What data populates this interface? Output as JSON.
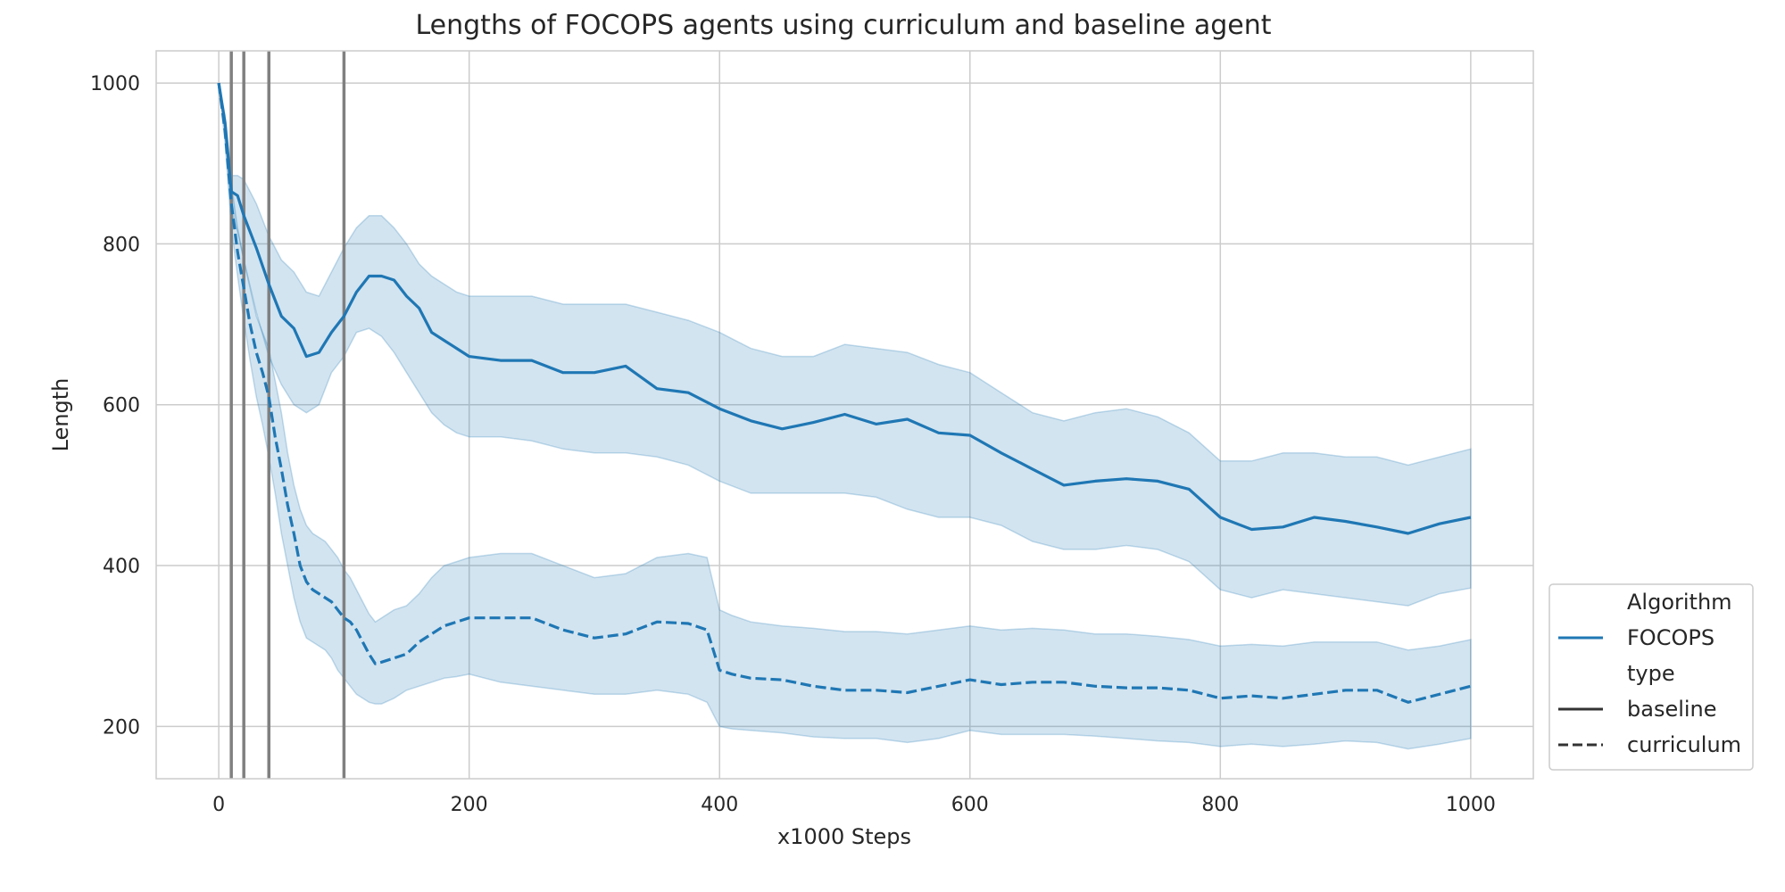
{
  "chart_data": {
    "type": "line",
    "title": "Lengths of FOCOPS agents using curriculum and baseline agent",
    "xlabel": "x1000 Steps",
    "ylabel": "Length",
    "xlim": [
      -50,
      1050
    ],
    "ylim": [
      135,
      1040
    ],
    "xticks": [
      0,
      200,
      400,
      600,
      800,
      1000
    ],
    "yticks": [
      200,
      400,
      600,
      800,
      1000
    ],
    "grid": true,
    "legend_position": "right, lower",
    "colors": {
      "line": "#1f77b4",
      "band": "#1f77b4",
      "vline": "#808080",
      "grid": "#cccccc",
      "spine": "#cccccc"
    },
    "curriculum_switch_steps": [
      10,
      20,
      40,
      100
    ],
    "legend": {
      "hue_title": "Algorithm",
      "hue_entries": [
        {
          "label": "FOCOPS",
          "color": "#1f77b4"
        }
      ],
      "style_title": "type",
      "style_entries": [
        {
          "label": "baseline",
          "dash": "solid"
        },
        {
          "label": "curriculum",
          "dash": "dashed"
        }
      ]
    },
    "series": [
      {
        "name": "baseline",
        "algorithm": "FOCOPS",
        "style": "solid",
        "x": [
          0,
          5,
          10,
          15,
          20,
          30,
          40,
          50,
          60,
          70,
          80,
          90,
          100,
          110,
          120,
          130,
          140,
          150,
          160,
          170,
          180,
          190,
          200,
          225,
          250,
          275,
          300,
          325,
          350,
          375,
          400,
          425,
          450,
          475,
          500,
          525,
          550,
          575,
          600,
          625,
          650,
          675,
          700,
          725,
          750,
          775,
          800,
          825,
          850,
          875,
          900,
          925,
          950,
          975,
          1000
        ],
        "y": [
          1000,
          950,
          865,
          860,
          835,
          795,
          750,
          710,
          695,
          660,
          665,
          690,
          710,
          740,
          760,
          760,
          755,
          735,
          720,
          690,
          680,
          670,
          660,
          655,
          655,
          640,
          640,
          648,
          620,
          615,
          595,
          580,
          570,
          578,
          588,
          576,
          582,
          565,
          562,
          540,
          520,
          500,
          505,
          508,
          505,
          495,
          460,
          445,
          448,
          460,
          455,
          448,
          440,
          452,
          460
        ],
        "lower": [
          1000,
          940,
          840,
          815,
          780,
          715,
          660,
          625,
          600,
          590,
          600,
          640,
          660,
          690,
          695,
          685,
          665,
          640,
          615,
          590,
          575,
          565,
          560,
          560,
          555,
          545,
          540,
          540,
          535,
          525,
          505,
          490,
          490,
          490,
          490,
          485,
          470,
          460,
          460,
          450,
          430,
          420,
          420,
          425,
          420,
          405,
          370,
          360,
          370,
          365,
          360,
          355,
          350,
          365,
          372
        ],
        "upper": [
          1000,
          960,
          885,
          885,
          880,
          850,
          810,
          780,
          765,
          740,
          735,
          765,
          795,
          820,
          835,
          835,
          820,
          800,
          775,
          760,
          750,
          740,
          735,
          735,
          735,
          725,
          725,
          725,
          715,
          705,
          690,
          670,
          660,
          660,
          675,
          670,
          665,
          650,
          640,
          615,
          590,
          580,
          590,
          595,
          585,
          565,
          530,
          530,
          540,
          540,
          535,
          535,
          525,
          535,
          545
        ]
      },
      {
        "name": "curriculum",
        "algorithm": "FOCOPS",
        "style": "dashed",
        "x": [
          0,
          5,
          10,
          15,
          20,
          25,
          30,
          35,
          40,
          45,
          50,
          55,
          60,
          65,
          70,
          75,
          80,
          85,
          90,
          95,
          100,
          105,
          110,
          115,
          120,
          125,
          130,
          140,
          150,
          160,
          170,
          180,
          190,
          200,
          225,
          250,
          275,
          300,
          325,
          350,
          375,
          390,
          400,
          410,
          425,
          450,
          475,
          500,
          525,
          550,
          575,
          600,
          625,
          650,
          675,
          700,
          725,
          750,
          775,
          800,
          825,
          850,
          875,
          900,
          925,
          950,
          975,
          1000
        ],
        "y": [
          1000,
          940,
          850,
          790,
          745,
          700,
          665,
          640,
          610,
          560,
          520,
          475,
          440,
          400,
          380,
          370,
          365,
          360,
          355,
          345,
          335,
          330,
          320,
          305,
          290,
          278,
          280,
          285,
          290,
          305,
          315,
          325,
          330,
          335,
          335,
          335,
          320,
          310,
          315,
          330,
          328,
          320,
          270,
          265,
          260,
          258,
          250,
          245,
          245,
          242,
          250,
          258,
          252,
          255,
          255,
          250,
          248,
          248,
          245,
          235,
          238,
          235,
          240,
          245,
          245,
          230,
          240,
          250
        ],
        "lower": [
          1000,
          925,
          820,
          760,
          705,
          655,
          610,
          575,
          535,
          490,
          440,
          400,
          360,
          330,
          310,
          305,
          300,
          295,
          285,
          270,
          260,
          250,
          240,
          235,
          230,
          228,
          228,
          235,
          245,
          250,
          255,
          260,
          262,
          265,
          255,
          250,
          245,
          240,
          240,
          245,
          240,
          230,
          200,
          197,
          195,
          192,
          187,
          185,
          185,
          180,
          185,
          195,
          190,
          190,
          190,
          188,
          185,
          182,
          180,
          175,
          178,
          175,
          178,
          182,
          180,
          172,
          178,
          185
        ],
        "upper": [
          1000,
          955,
          875,
          820,
          780,
          745,
          710,
          690,
          670,
          630,
          590,
          540,
          500,
          470,
          450,
          440,
          435,
          430,
          420,
          410,
          395,
          385,
          370,
          355,
          340,
          330,
          335,
          345,
          350,
          365,
          385,
          400,
          405,
          410,
          415,
          415,
          400,
          385,
          390,
          410,
          415,
          410,
          345,
          338,
          330,
          325,
          322,
          318,
          318,
          315,
          320,
          325,
          320,
          322,
          320,
          315,
          315,
          312,
          308,
          300,
          302,
          300,
          305,
          305,
          305,
          295,
          300,
          308
        ]
      }
    ]
  }
}
